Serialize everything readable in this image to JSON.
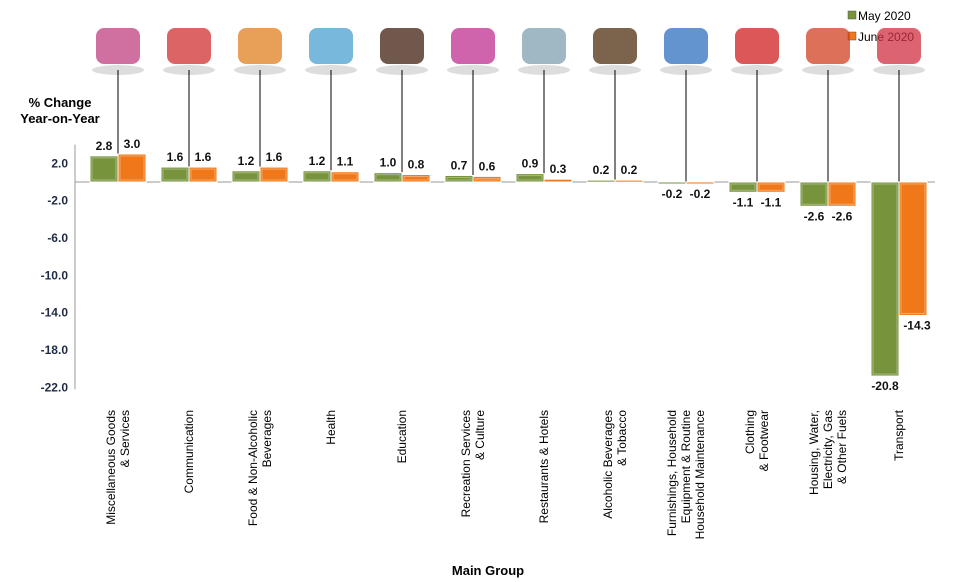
{
  "chart_data": {
    "type": "bar",
    "ylabel": [
      "% Change",
      "Year-on-Year"
    ],
    "xlabel": "Main Group",
    "ylim": [
      -22,
      4
    ],
    "yticks": [
      "2.0",
      "-2.0",
      "-6.0",
      "-10.0",
      "-14.0",
      "-18.0",
      "-22.0"
    ],
    "grid": false,
    "legend_position": "top-right",
    "categories": [
      [
        "Miscellaneous Goods",
        "& Services"
      ],
      [
        "Communication"
      ],
      [
        "Food & Non-Alcoholic",
        "Beverages"
      ],
      [
        "Health"
      ],
      [
        "Education"
      ],
      [
        "Recreation Services",
        "& Culture"
      ],
      [
        "Restaurants & Hotels"
      ],
      [
        "Alcoholic Beverages",
        "& Tobacco"
      ],
      [
        "Furnishings, Household",
        "Equipment & Routine",
        "Household Maintenance"
      ],
      [
        "Clothing",
        "& Footwear"
      ],
      [
        "Housing, Water,",
        "Electricity, Gas",
        "& Other Fuels"
      ],
      [
        "Transport"
      ]
    ],
    "series": [
      {
        "name": "May 2020",
        "color": "#77933c",
        "values": [
          2.8,
          1.6,
          1.2,
          1.2,
          1.0,
          0.7,
          0.9,
          0.2,
          -0.2,
          -1.1,
          -2.6,
          -20.8
        ]
      },
      {
        "name": "June 2020",
        "color": "#f07818",
        "values": [
          3.0,
          1.6,
          1.6,
          1.1,
          0.8,
          0.6,
          0.3,
          0.2,
          -0.2,
          -1.1,
          -2.6,
          -14.3
        ]
      }
    ],
    "icons": [
      "shopping-bags-icon",
      "phone-delivery-icon",
      "food-basket-icon",
      "hospital-icon",
      "books-graduation-cap-icon",
      "guitar-toys-icon",
      "hotel-building-icon",
      "bottles-icon",
      "washing-machine-furniture-icon",
      "clothing-icon",
      "house-power-icon",
      "car-train-plane-icon"
    ]
  }
}
